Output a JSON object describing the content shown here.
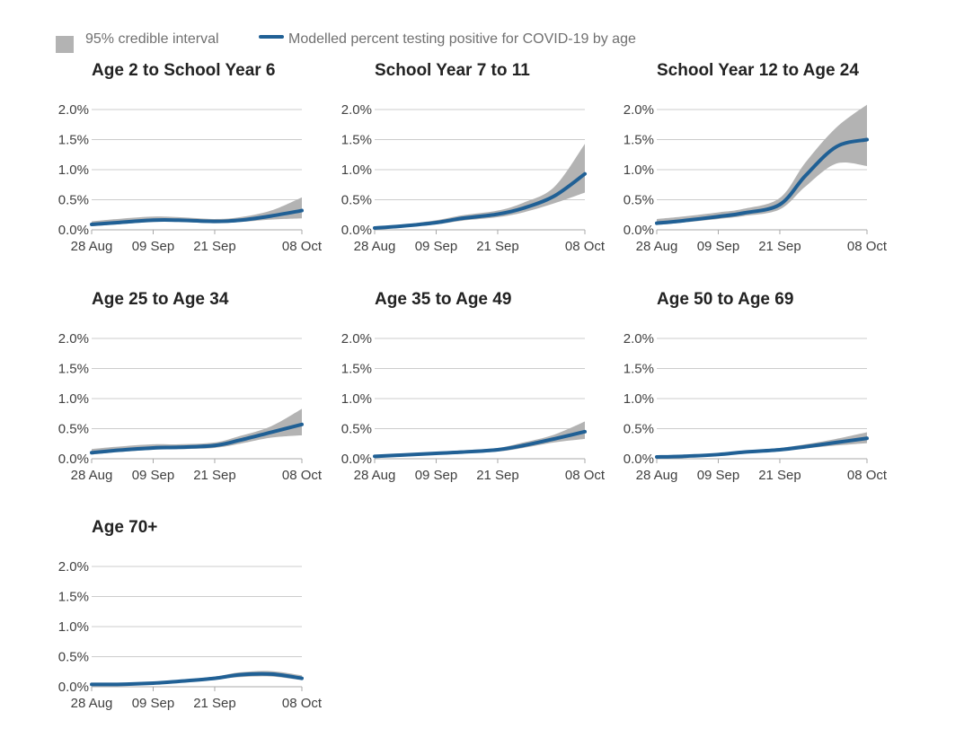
{
  "legend": {
    "interval_label": "95% credible interval",
    "line_label": "Modelled percent testing positive for COVID-19 by age"
  },
  "colors": {
    "line": "#206095",
    "band": "#b3b3b3",
    "grid": "#cccccc",
    "axis_text": "#404040",
    "title_text": "#222222"
  },
  "chart_data": [
    {
      "type": "area",
      "title": "Age 2 to School Year 6",
      "x": [
        "28 Aug",
        "02 Sep",
        "09 Sep",
        "14 Sep",
        "21 Sep",
        "26 Sep",
        "02 Oct",
        "08 Oct"
      ],
      "x_ticks": [
        "28 Aug",
        "09 Sep",
        "21 Sep",
        "08 Oct"
      ],
      "y_ticks": [
        "0.0%",
        "0.5%",
        "1.0%",
        "1.5%",
        "2.0%"
      ],
      "ylim": [
        0,
        2.0
      ],
      "series": [
        {
          "values": [
            0.09,
            0.12,
            0.16,
            0.16,
            0.14,
            0.16,
            0.23,
            0.32
          ]
        },
        {
          "name": "95% credible interval lower",
          "values": [
            0.06,
            0.09,
            0.13,
            0.13,
            0.11,
            0.13,
            0.17,
            0.19
          ]
        },
        {
          "name": "95% credible interval upper",
          "values": [
            0.14,
            0.18,
            0.22,
            0.21,
            0.18,
            0.21,
            0.32,
            0.54
          ]
        }
      ]
    },
    {
      "type": "area",
      "title": "School Year 7 to 11",
      "x": [
        "28 Aug",
        "02 Sep",
        "09 Sep",
        "14 Sep",
        "21 Sep",
        "26 Sep",
        "02 Oct",
        "08 Oct"
      ],
      "x_ticks": [
        "28 Aug",
        "09 Sep",
        "21 Sep",
        "08 Oct"
      ],
      "y_ticks": [
        "0.0%",
        "0.5%",
        "1.0%",
        "1.5%",
        "2.0%"
      ],
      "ylim": [
        0,
        2.0
      ],
      "series": [
        {
          "values": [
            0.03,
            0.06,
            0.12,
            0.19,
            0.26,
            0.36,
            0.56,
            0.93
          ]
        },
        {
          "name": "95% credible interval lower",
          "values": [
            0.02,
            0.04,
            0.09,
            0.15,
            0.21,
            0.29,
            0.44,
            0.62
          ]
        },
        {
          "name": "95% credible interval upper",
          "values": [
            0.05,
            0.08,
            0.16,
            0.24,
            0.32,
            0.45,
            0.71,
            1.43
          ]
        }
      ]
    },
    {
      "type": "area",
      "title": "School Year 12 to Age 24",
      "x": [
        "28 Aug",
        "02 Sep",
        "09 Sep",
        "14 Sep",
        "21 Sep",
        "26 Sep",
        "02 Oct",
        "08 Oct"
      ],
      "x_ticks": [
        "28 Aug",
        "09 Sep",
        "21 Sep",
        "08 Oct"
      ],
      "y_ticks": [
        "0.0%",
        "0.5%",
        "1.0%",
        "1.5%",
        "2.0%"
      ],
      "ylim": [
        0,
        2.0
      ],
      "series": [
        {
          "values": [
            0.11,
            0.15,
            0.22,
            0.28,
            0.42,
            0.9,
            1.38,
            1.5
          ]
        },
        {
          "name": "95% credible interval lower",
          "values": [
            0.08,
            0.12,
            0.18,
            0.23,
            0.34,
            0.72,
            1.1,
            1.06
          ]
        },
        {
          "name": "95% credible interval upper",
          "values": [
            0.18,
            0.22,
            0.29,
            0.35,
            0.53,
            1.12,
            1.7,
            2.08
          ]
        }
      ]
    },
    {
      "type": "area",
      "title": "Age 25 to Age 34",
      "x": [
        "28 Aug",
        "02 Sep",
        "09 Sep",
        "14 Sep",
        "21 Sep",
        "26 Sep",
        "02 Oct",
        "08 Oct"
      ],
      "x_ticks": [
        "28 Aug",
        "09 Sep",
        "21 Sep",
        "08 Oct"
      ],
      "y_ticks": [
        "0.0%",
        "0.5%",
        "1.0%",
        "1.5%",
        "2.0%"
      ],
      "ylim": [
        0,
        2.0
      ],
      "series": [
        {
          "values": [
            0.1,
            0.14,
            0.18,
            0.19,
            0.22,
            0.31,
            0.44,
            0.57
          ]
        },
        {
          "name": "95% credible interval lower",
          "values": [
            0.07,
            0.11,
            0.15,
            0.16,
            0.18,
            0.25,
            0.35,
            0.39
          ]
        },
        {
          "name": "95% credible interval upper",
          "values": [
            0.16,
            0.2,
            0.24,
            0.24,
            0.27,
            0.38,
            0.54,
            0.83
          ]
        }
      ]
    },
    {
      "type": "area",
      "title": "Age 35 to Age 49",
      "x": [
        "28 Aug",
        "02 Sep",
        "09 Sep",
        "14 Sep",
        "21 Sep",
        "26 Sep",
        "02 Oct",
        "08 Oct"
      ],
      "x_ticks": [
        "28 Aug",
        "09 Sep",
        "21 Sep",
        "08 Oct"
      ],
      "y_ticks": [
        "0.0%",
        "0.5%",
        "1.0%",
        "1.5%",
        "2.0%"
      ],
      "ylim": [
        0,
        2.0
      ],
      "series": [
        {
          "values": [
            0.04,
            0.06,
            0.09,
            0.11,
            0.15,
            0.22,
            0.33,
            0.45
          ]
        },
        {
          "name": "95% credible interval lower",
          "values": [
            0.03,
            0.05,
            0.07,
            0.09,
            0.12,
            0.18,
            0.27,
            0.33
          ]
        },
        {
          "name": "95% credible interval upper",
          "values": [
            0.06,
            0.08,
            0.11,
            0.14,
            0.18,
            0.27,
            0.4,
            0.62
          ]
        }
      ]
    },
    {
      "type": "area",
      "title": "Age 50 to Age 69",
      "x": [
        "28 Aug",
        "02 Sep",
        "09 Sep",
        "14 Sep",
        "21 Sep",
        "26 Sep",
        "02 Oct",
        "08 Oct"
      ],
      "x_ticks": [
        "28 Aug",
        "09 Sep",
        "21 Sep",
        "08 Oct"
      ],
      "y_ticks": [
        "0.0%",
        "0.5%",
        "1.0%",
        "1.5%",
        "2.0%"
      ],
      "ylim": [
        0,
        2.0
      ],
      "series": [
        {
          "values": [
            0.03,
            0.04,
            0.07,
            0.11,
            0.15,
            0.2,
            0.27,
            0.34
          ]
        },
        {
          "name": "95% credible interval lower",
          "values": [
            0.02,
            0.03,
            0.06,
            0.09,
            0.13,
            0.17,
            0.22,
            0.26
          ]
        },
        {
          "name": "95% credible interval upper",
          "values": [
            0.04,
            0.05,
            0.09,
            0.13,
            0.18,
            0.24,
            0.33,
            0.44
          ]
        }
      ]
    },
    {
      "type": "area",
      "title": "Age 70+",
      "x": [
        "28 Aug",
        "02 Sep",
        "09 Sep",
        "14 Sep",
        "21 Sep",
        "26 Sep",
        "02 Oct",
        "08 Oct"
      ],
      "x_ticks": [
        "28 Aug",
        "09 Sep",
        "21 Sep",
        "08 Oct"
      ],
      "y_ticks": [
        "0.0%",
        "0.5%",
        "1.0%",
        "1.5%",
        "2.0%"
      ],
      "ylim": [
        0,
        2.0
      ],
      "series": [
        {
          "values": [
            0.04,
            0.04,
            0.06,
            0.09,
            0.14,
            0.2,
            0.21,
            0.14
          ]
        },
        {
          "name": "95% credible interval lower",
          "values": [
            0.03,
            0.03,
            0.05,
            0.07,
            0.12,
            0.16,
            0.17,
            0.11
          ]
        },
        {
          "name": "95% credible interval upper",
          "values": [
            0.05,
            0.05,
            0.08,
            0.11,
            0.17,
            0.24,
            0.26,
            0.19
          ]
        }
      ]
    }
  ]
}
